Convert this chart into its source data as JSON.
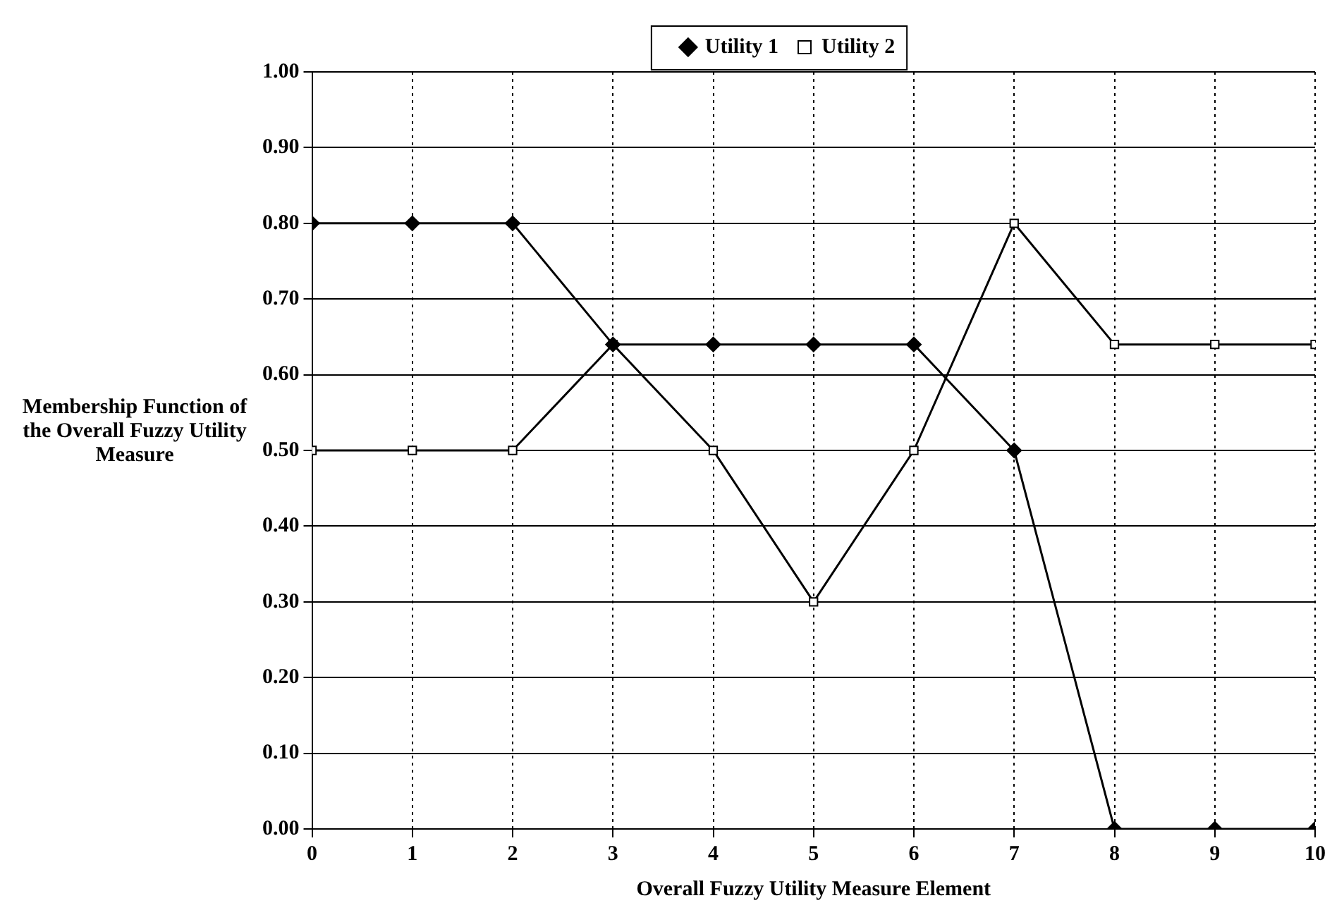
{
  "chart_data": {
    "type": "line",
    "xlabel": "Overall Fuzzy Utility Measure Element",
    "ylabel": "Membership Function of the Overall Fuzzy Utility Measure",
    "x": [
      0,
      1,
      2,
      3,
      4,
      5,
      6,
      7,
      8,
      9,
      10
    ],
    "series": [
      {
        "name": "Utility 1",
        "color": "#000000",
        "marker": "diamond",
        "values": [
          0.8,
          0.8,
          0.8,
          0.64,
          0.64,
          0.64,
          0.64,
          0.5,
          0,
          0,
          0
        ]
      },
      {
        "name": "Utility 2",
        "color": "#000000",
        "marker": "square",
        "values": [
          0.5,
          0.5,
          0.5,
          0.64,
          0.5,
          0.3,
          0.5,
          0.8,
          0.64,
          0.64,
          0.64
        ]
      }
    ],
    "xlim": [
      0,
      10
    ],
    "xticks": [
      0,
      1,
      2,
      3,
      4,
      5,
      6,
      7,
      8,
      9,
      10
    ],
    "ylim": [
      0,
      1
    ],
    "yticks": [
      {
        "value": 0,
        "label": "0.00"
      },
      {
        "value": 0.1,
        "label": "0.10"
      },
      {
        "value": 0.2,
        "label": "0.20"
      },
      {
        "value": 0.3,
        "label": "0.30"
      },
      {
        "value": 0.4,
        "label": "0.40"
      },
      {
        "value": 0.5,
        "label": "0.50"
      },
      {
        "value": 0.6,
        "label": "0.60"
      },
      {
        "value": 0.7,
        "label": "0.70"
      },
      {
        "value": 0.8,
        "label": "0.80"
      },
      {
        "value": 0.9,
        "label": "0.90"
      },
      {
        "value": 1,
        "label": "1.00"
      }
    ],
    "grid": true,
    "legend": "top",
    "line_style": "solid"
  }
}
